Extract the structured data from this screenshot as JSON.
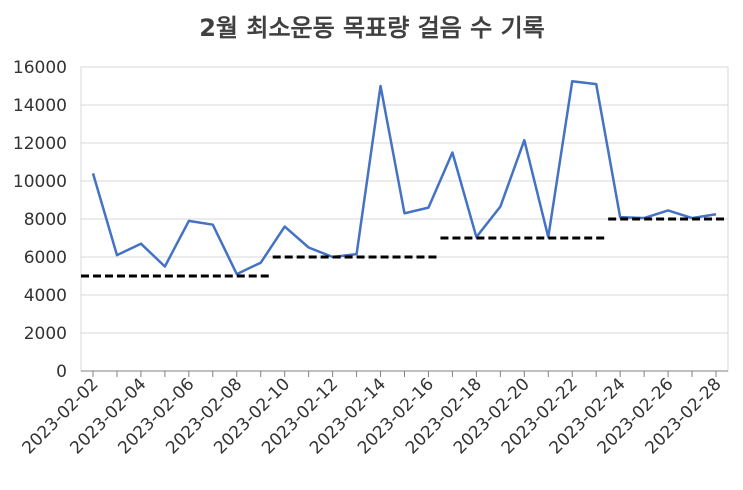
{
  "chart_data": {
    "type": "line",
    "title": "2월 최소운동 목표량 걸음 수 기록",
    "categories": [
      "2023-02-02",
      null,
      "2023-02-04",
      null,
      "2023-02-06",
      null,
      "2023-02-08",
      null,
      "2023-02-10",
      null,
      "2023-02-12",
      null,
      "2023-02-14",
      null,
      "2023-02-16",
      null,
      "2023-02-18",
      null,
      "2023-02-20",
      null,
      "2023-02-22",
      null,
      "2023-02-24",
      null,
      "2023-02-26",
      null,
      "2023-02-28"
    ],
    "series": [
      {
        "color": "#4472c4",
        "style": "solid",
        "values": [
          10400,
          6100,
          6700,
          5500,
          7900,
          7700,
          5100,
          5700,
          7600,
          6500,
          6000,
          6150,
          15000,
          8300,
          8600,
          11500,
          7050,
          8650,
          12150,
          7050,
          15250,
          15100,
          8100,
          8050,
          8450,
          8050,
          8250
        ]
      },
      {
        "color": "#000000",
        "style": "dashed",
        "values": [
          5000,
          5000,
          5000,
          5000,
          5000,
          5000,
          5000,
          5000,
          6000,
          6000,
          6000,
          6000,
          6000,
          6000,
          6000,
          7000,
          7000,
          7000,
          7000,
          7000,
          7000,
          7000,
          8000,
          8000,
          8000,
          8000,
          8000
        ]
      }
    ],
    "ylim": [
      0,
      16000
    ],
    "yticks": [
      0,
      2000,
      4000,
      6000,
      8000,
      10000,
      12000,
      14000,
      16000
    ],
    "grid": true
  }
}
